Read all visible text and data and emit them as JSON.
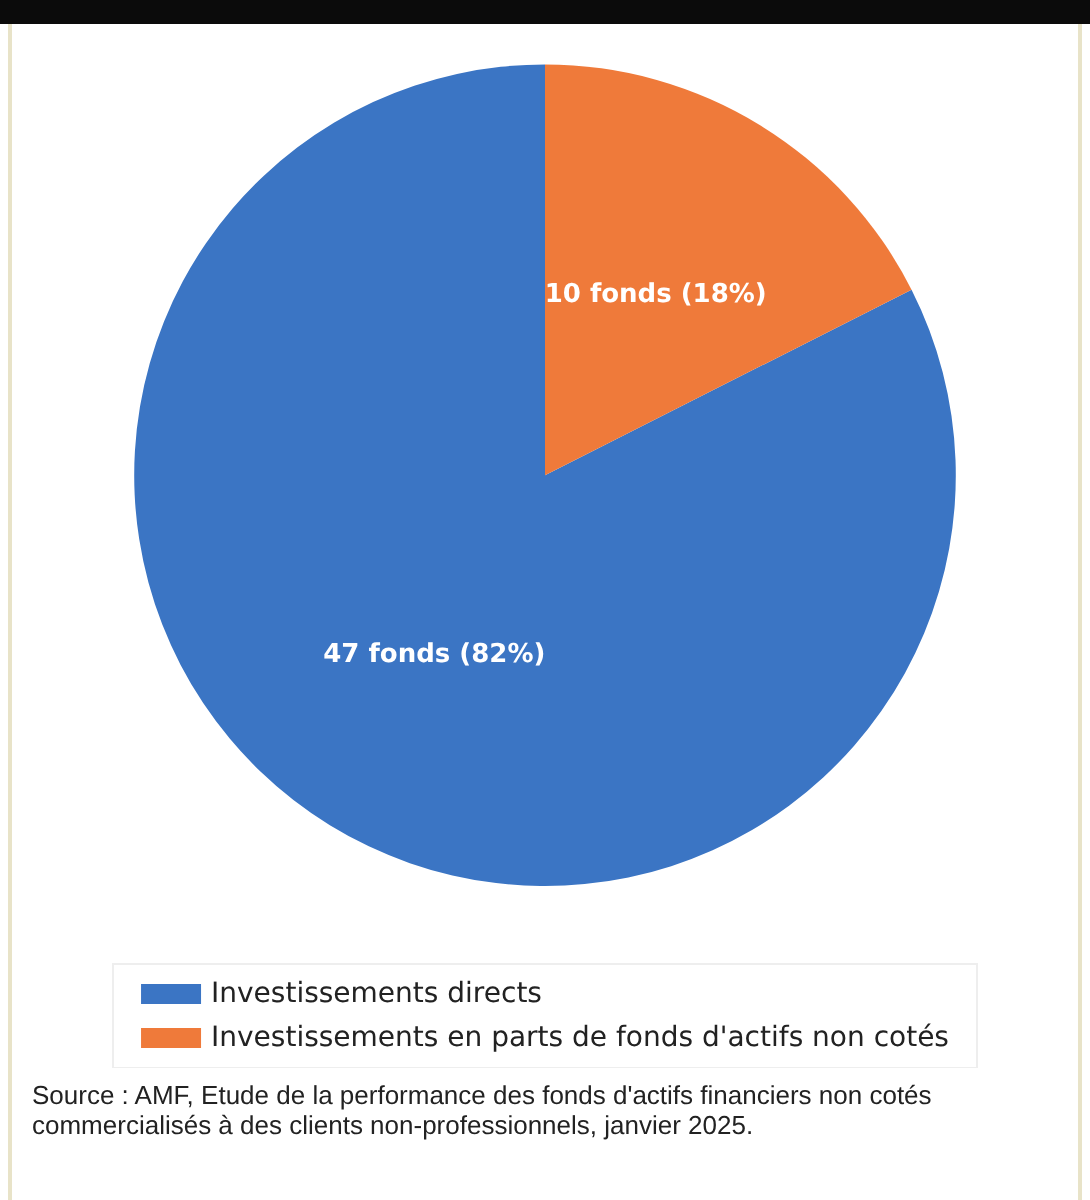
{
  "chart_data": {
    "type": "pie",
    "categories": [
      "Investissements directs",
      "Investissements en parts de fonds d'actifs non cotés"
    ],
    "values": [
      47,
      10
    ],
    "colors": [
      "#3b75c4",
      "#ef7a3a"
    ],
    "value_labels": [
      "47 fonds (82%)",
      "10 fonds (18%)"
    ],
    "legend": "bottom",
    "annotations": [
      "Source : AMF, Etude de la performance des fonds d'actifs financiers non cotés commercialisés à des clients non-professionnels, janvier 2025."
    ]
  }
}
